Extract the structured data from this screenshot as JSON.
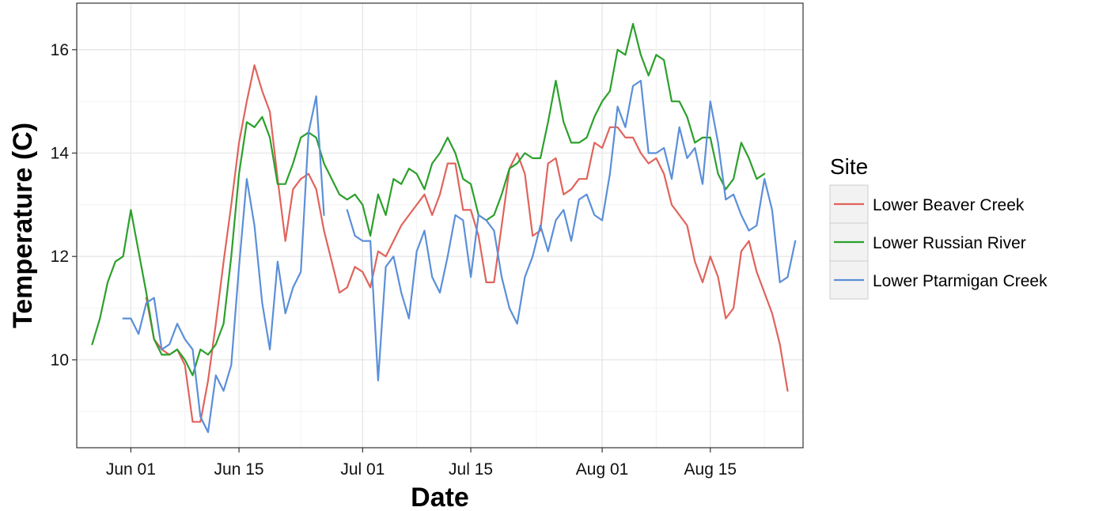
{
  "chart_data": {
    "type": "line",
    "xlabel": "Date",
    "ylabel": "Temperature (C)",
    "x_type": "date",
    "xlim": [
      "2016-05-25",
      "2016-08-27"
    ],
    "ylim": [
      8.3,
      16.9
    ],
    "x_ticks": [
      {
        "date": "2016-06-01",
        "label": "Jun 01"
      },
      {
        "date": "2016-06-15",
        "label": "Jun 15"
      },
      {
        "date": "2016-07-01",
        "label": "Jul 01"
      },
      {
        "date": "2016-07-15",
        "label": "Jul 15"
      },
      {
        "date": "2016-08-01",
        "label": "Aug 01"
      },
      {
        "date": "2016-08-15",
        "label": "Aug 15"
      }
    ],
    "y_ticks": [
      10,
      12,
      14,
      16
    ],
    "grid": true,
    "legend": {
      "title": "Site",
      "position": "right"
    },
    "series": [
      {
        "name": "Lower Beaver Creek",
        "color": "#E0645C",
        "points": [
          [
            "2016-06-03",
            11.2
          ],
          [
            "2016-06-04",
            10.4
          ],
          [
            "2016-06-05",
            10.2
          ],
          [
            "2016-06-06",
            10.1
          ],
          [
            "2016-06-07",
            10.2
          ],
          [
            "2016-06-08",
            9.9
          ],
          [
            "2016-06-09",
            8.8
          ],
          [
            "2016-06-10",
            8.8
          ],
          [
            "2016-06-11",
            9.6
          ],
          [
            "2016-06-12",
            10.7
          ],
          [
            "2016-06-13",
            11.9
          ],
          [
            "2016-06-14",
            13.0
          ],
          [
            "2016-06-15",
            14.2
          ],
          [
            "2016-06-16",
            15.0
          ],
          [
            "2016-06-17",
            15.7
          ],
          [
            "2016-06-18",
            15.2
          ],
          [
            "2016-06-19",
            14.8
          ],
          [
            "2016-06-20",
            13.5
          ],
          [
            "2016-06-21",
            12.3
          ],
          [
            "2016-06-22",
            13.3
          ],
          [
            "2016-06-23",
            13.5
          ],
          [
            "2016-06-24",
            13.6
          ],
          [
            "2016-06-25",
            13.3
          ],
          [
            "2016-06-26",
            12.5
          ],
          [
            "2016-06-27",
            11.9
          ],
          [
            "2016-06-28",
            11.3
          ],
          [
            "2016-06-29",
            11.4
          ],
          [
            "2016-06-30",
            11.8
          ],
          [
            "2016-07-01",
            11.7
          ],
          [
            "2016-07-02",
            11.4
          ],
          [
            "2016-07-03",
            12.1
          ],
          [
            "2016-07-04",
            12.0
          ],
          [
            "2016-07-05",
            12.3
          ],
          [
            "2016-07-06",
            12.6
          ],
          [
            "2016-07-07",
            12.8
          ],
          [
            "2016-07-08",
            13.0
          ],
          [
            "2016-07-09",
            13.2
          ],
          [
            "2016-07-10",
            12.8
          ],
          [
            "2016-07-11",
            13.2
          ],
          [
            "2016-07-12",
            13.8
          ],
          [
            "2016-07-13",
            13.8
          ],
          [
            "2016-07-14",
            12.9
          ],
          [
            "2016-07-15",
            12.9
          ],
          [
            "2016-07-16",
            12.4
          ],
          [
            "2016-07-17",
            11.5
          ],
          [
            "2016-07-18",
            11.5
          ],
          [
            "2016-07-19",
            12.6
          ],
          [
            "2016-07-20",
            13.7
          ],
          [
            "2016-07-21",
            14.0
          ],
          [
            "2016-07-22",
            13.6
          ],
          [
            "2016-07-23",
            12.4
          ],
          [
            "2016-07-24",
            12.5
          ],
          [
            "2016-07-25",
            13.8
          ],
          [
            "2016-07-26",
            13.9
          ],
          [
            "2016-07-27",
            13.2
          ],
          [
            "2016-07-28",
            13.3
          ],
          [
            "2016-07-29",
            13.5
          ],
          [
            "2016-07-30",
            13.5
          ],
          [
            "2016-07-31",
            14.2
          ],
          [
            "2016-08-01",
            14.1
          ],
          [
            "2016-08-02",
            14.5
          ],
          [
            "2016-08-03",
            14.5
          ],
          [
            "2016-08-04",
            14.3
          ],
          [
            "2016-08-05",
            14.3
          ],
          [
            "2016-08-06",
            14.0
          ],
          [
            "2016-08-07",
            13.8
          ],
          [
            "2016-08-08",
            13.9
          ],
          [
            "2016-08-09",
            13.6
          ],
          [
            "2016-08-10",
            13.0
          ],
          [
            "2016-08-11",
            12.8
          ],
          [
            "2016-08-12",
            12.6
          ],
          [
            "2016-08-13",
            11.9
          ],
          [
            "2016-08-14",
            11.5
          ],
          [
            "2016-08-15",
            12.0
          ],
          [
            "2016-08-16",
            11.6
          ],
          [
            "2016-08-17",
            10.8
          ],
          [
            "2016-08-18",
            11.0
          ],
          [
            "2016-08-19",
            12.1
          ],
          [
            "2016-08-20",
            12.3
          ],
          [
            "2016-08-21",
            11.7
          ],
          [
            "2016-08-22",
            11.3
          ],
          [
            "2016-08-23",
            10.9
          ],
          [
            "2016-08-24",
            10.3
          ],
          [
            "2016-08-25",
            9.4
          ]
        ]
      },
      {
        "name": "Lower Russian River",
        "color": "#2CA02C",
        "points": [
          [
            "2016-05-27",
            10.3
          ],
          [
            "2016-05-28",
            10.8
          ],
          [
            "2016-05-29",
            11.5
          ],
          [
            "2016-05-30",
            11.9
          ],
          [
            "2016-05-31",
            12.0
          ],
          [
            "2016-06-01",
            12.9
          ],
          [
            "2016-06-02",
            12.1
          ],
          [
            "2016-06-03",
            11.3
          ],
          [
            "2016-06-04",
            10.4
          ],
          [
            "2016-06-05",
            10.1
          ],
          [
            "2016-06-06",
            10.1
          ],
          [
            "2016-06-07",
            10.2
          ],
          [
            "2016-06-08",
            10.0
          ],
          [
            "2016-06-09",
            9.7
          ],
          [
            "2016-06-10",
            10.2
          ],
          [
            "2016-06-11",
            10.1
          ],
          [
            "2016-06-12",
            10.3
          ],
          [
            "2016-06-13",
            10.7
          ],
          [
            "2016-06-14",
            12.0
          ],
          [
            "2016-06-15",
            13.6
          ],
          [
            "2016-06-16",
            14.6
          ],
          [
            "2016-06-17",
            14.5
          ],
          [
            "2016-06-18",
            14.7
          ],
          [
            "2016-06-19",
            14.3
          ],
          [
            "2016-06-20",
            13.4
          ],
          [
            "2016-06-21",
            13.4
          ],
          [
            "2016-06-22",
            13.8
          ],
          [
            "2016-06-23",
            14.3
          ],
          [
            "2016-06-24",
            14.4
          ],
          [
            "2016-06-25",
            14.3
          ],
          [
            "2016-06-26",
            13.8
          ],
          [
            "2016-06-27",
            13.5
          ],
          [
            "2016-06-28",
            13.2
          ],
          [
            "2016-06-29",
            13.1
          ],
          [
            "2016-06-30",
            13.2
          ],
          [
            "2016-07-01",
            13.0
          ],
          [
            "2016-07-02",
            12.4
          ],
          [
            "2016-07-03",
            13.2
          ],
          [
            "2016-07-04",
            12.8
          ],
          [
            "2016-07-05",
            13.5
          ],
          [
            "2016-07-06",
            13.4
          ],
          [
            "2016-07-07",
            13.7
          ],
          [
            "2016-07-08",
            13.6
          ],
          [
            "2016-07-09",
            13.3
          ],
          [
            "2016-07-10",
            13.8
          ],
          [
            "2016-07-11",
            14.0
          ],
          [
            "2016-07-12",
            14.3
          ],
          [
            "2016-07-13",
            14.0
          ],
          [
            "2016-07-14",
            13.5
          ],
          [
            "2016-07-15",
            13.4
          ],
          [
            "2016-07-16",
            12.8
          ],
          [
            "2016-07-17",
            12.7
          ],
          [
            "2016-07-18",
            12.8
          ],
          [
            "2016-07-19",
            13.2
          ],
          [
            "2016-07-20",
            13.7
          ],
          [
            "2016-07-21",
            13.8
          ],
          [
            "2016-07-22",
            14.0
          ],
          [
            "2016-07-23",
            13.9
          ],
          [
            "2016-07-24",
            13.9
          ],
          [
            "2016-07-25",
            14.6
          ],
          [
            "2016-07-26",
            15.4
          ],
          [
            "2016-07-27",
            14.6
          ],
          [
            "2016-07-28",
            14.2
          ],
          [
            "2016-07-29",
            14.2
          ],
          [
            "2016-07-30",
            14.3
          ],
          [
            "2016-07-31",
            14.7
          ],
          [
            "2016-08-01",
            15.0
          ],
          [
            "2016-08-02",
            15.2
          ],
          [
            "2016-08-03",
            16.0
          ],
          [
            "2016-08-04",
            15.9
          ],
          [
            "2016-08-05",
            16.5
          ],
          [
            "2016-08-06",
            15.9
          ],
          [
            "2016-08-07",
            15.5
          ],
          [
            "2016-08-08",
            15.9
          ],
          [
            "2016-08-09",
            15.8
          ],
          [
            "2016-08-10",
            15.0
          ],
          [
            "2016-08-11",
            15.0
          ],
          [
            "2016-08-12",
            14.7
          ],
          [
            "2016-08-13",
            14.2
          ],
          [
            "2016-08-14",
            14.3
          ],
          [
            "2016-08-15",
            14.3
          ],
          [
            "2016-08-16",
            13.6
          ],
          [
            "2016-08-17",
            13.3
          ],
          [
            "2016-08-18",
            13.5
          ],
          [
            "2016-08-19",
            14.2
          ],
          [
            "2016-08-20",
            13.9
          ],
          [
            "2016-08-21",
            13.5
          ],
          [
            "2016-08-22",
            13.6
          ]
        ]
      },
      {
        "name": "Lower Ptarmigan Creek",
        "color": "#5B8FD9",
        "points": [
          [
            "2016-05-31",
            10.8
          ],
          [
            "2016-06-01",
            10.8
          ],
          [
            "2016-06-02",
            10.5
          ],
          [
            "2016-06-03",
            11.1
          ],
          [
            "2016-06-04",
            11.2
          ],
          [
            "2016-06-05",
            10.2
          ],
          [
            "2016-06-06",
            10.3
          ],
          [
            "2016-06-07",
            10.7
          ],
          [
            "2016-06-08",
            10.4
          ],
          [
            "2016-06-09",
            10.2
          ],
          [
            "2016-06-10",
            8.9
          ],
          [
            "2016-06-11",
            8.6
          ],
          [
            "2016-06-12",
            9.7
          ],
          [
            "2016-06-13",
            9.4
          ],
          [
            "2016-06-14",
            9.9
          ],
          [
            "2016-06-15",
            11.8
          ],
          [
            "2016-06-16",
            13.5
          ],
          [
            "2016-06-17",
            12.6
          ],
          [
            "2016-06-18",
            11.1
          ],
          [
            "2016-06-19",
            10.2
          ],
          [
            "2016-06-20",
            11.9
          ],
          [
            "2016-06-21",
            10.9
          ],
          [
            "2016-06-22",
            11.4
          ],
          [
            "2016-06-23",
            11.7
          ],
          [
            "2016-06-24",
            14.4
          ],
          [
            "2016-06-25",
            15.1
          ],
          [
            "2016-06-26",
            12.8
          ],
          null,
          [
            "2016-06-29",
            12.9
          ],
          [
            "2016-06-30",
            12.4
          ],
          [
            "2016-07-01",
            12.3
          ],
          [
            "2016-07-02",
            12.3
          ],
          [
            "2016-07-03",
            9.6
          ],
          [
            "2016-07-04",
            11.8
          ],
          [
            "2016-07-05",
            12.0
          ],
          [
            "2016-07-06",
            11.3
          ],
          [
            "2016-07-07",
            10.8
          ],
          [
            "2016-07-08",
            12.1
          ],
          [
            "2016-07-09",
            12.5
          ],
          [
            "2016-07-10",
            11.6
          ],
          [
            "2016-07-11",
            11.3
          ],
          [
            "2016-07-12",
            12.0
          ],
          [
            "2016-07-13",
            12.8
          ],
          [
            "2016-07-14",
            12.7
          ],
          [
            "2016-07-15",
            11.6
          ],
          [
            "2016-07-16",
            12.8
          ],
          [
            "2016-07-17",
            12.7
          ],
          [
            "2016-07-18",
            12.5
          ],
          [
            "2016-07-19",
            11.6
          ],
          [
            "2016-07-20",
            11.0
          ],
          [
            "2016-07-21",
            10.7
          ],
          [
            "2016-07-22",
            11.6
          ],
          [
            "2016-07-23",
            12.0
          ],
          [
            "2016-07-24",
            12.6
          ],
          [
            "2016-07-25",
            12.1
          ],
          [
            "2016-07-26",
            12.7
          ],
          [
            "2016-07-27",
            12.9
          ],
          [
            "2016-07-28",
            12.3
          ],
          [
            "2016-07-29",
            13.1
          ],
          [
            "2016-07-30",
            13.2
          ],
          [
            "2016-07-31",
            12.8
          ],
          [
            "2016-08-01",
            12.7
          ],
          [
            "2016-08-02",
            13.6
          ],
          [
            "2016-08-03",
            14.9
          ],
          [
            "2016-08-04",
            14.5
          ],
          [
            "2016-08-05",
            15.3
          ],
          [
            "2016-08-06",
            15.4
          ],
          [
            "2016-08-07",
            14.0
          ],
          [
            "2016-08-08",
            14.0
          ],
          [
            "2016-08-09",
            14.1
          ],
          [
            "2016-08-10",
            13.5
          ],
          [
            "2016-08-11",
            14.5
          ],
          [
            "2016-08-12",
            13.9
          ],
          [
            "2016-08-13",
            14.1
          ],
          [
            "2016-08-14",
            13.4
          ],
          [
            "2016-08-15",
            15.0
          ],
          [
            "2016-08-16",
            14.2
          ],
          [
            "2016-08-17",
            13.1
          ],
          [
            "2016-08-18",
            13.2
          ],
          [
            "2016-08-19",
            12.8
          ],
          [
            "2016-08-20",
            12.5
          ],
          [
            "2016-08-21",
            12.6
          ],
          [
            "2016-08-22",
            13.5
          ],
          [
            "2016-08-23",
            12.9
          ],
          [
            "2016-08-24",
            11.5
          ],
          [
            "2016-08-25",
            11.6
          ],
          [
            "2016-08-26",
            12.3
          ]
        ]
      }
    ]
  }
}
